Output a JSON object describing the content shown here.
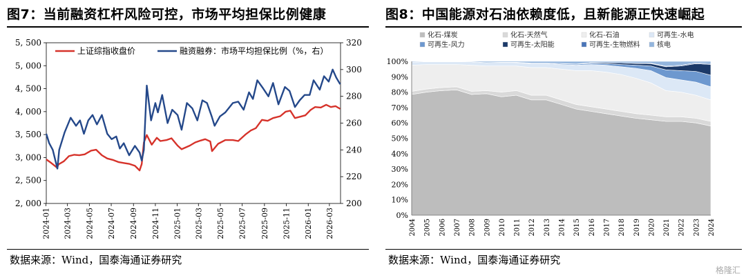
{
  "watermark": "格隆汇",
  "chart_data": [
    {
      "type": "line",
      "title": "图7：当前融资杠杆风险可控，市场平均担保比例健康",
      "source": "数据来源：Wind，国泰海通证券研究",
      "x_ticks": [
        "2024-01",
        "2024-03",
        "2024-05",
        "2024-07",
        "2024-09",
        "2024-11",
        "2025-01",
        "2025-03",
        "2025-05",
        "2025-07",
        "2025-09",
        "2025-11",
        "2026-01",
        "2026-03"
      ],
      "y_left": {
        "ticks": [
          "2, 000",
          "2, 500",
          "3, 000",
          "3, 500",
          "4, 000",
          "4, 500",
          "5, 000",
          "5, 500"
        ],
        "lim": [
          2000,
          5500
        ]
      },
      "y_right": {
        "ticks": [
          "200",
          "220",
          "240",
          "260",
          "280",
          "300",
          "320"
        ],
        "lim": [
          200,
          320
        ]
      },
      "series": [
        {
          "name": "上证综指收盘价",
          "axis": "left",
          "color": "#d6322a",
          "x": [
            "2024-01-02",
            "2024-01-16",
            "2024-02-01",
            "2024-02-05",
            "2024-02-20",
            "2024-03-05",
            "2024-03-20",
            "2024-04-03",
            "2024-04-18",
            "2024-05-06",
            "2024-05-20",
            "2024-06-05",
            "2024-06-20",
            "2024-07-05",
            "2024-07-22",
            "2024-08-06",
            "2024-08-21",
            "2024-09-05",
            "2024-09-18",
            "2024-09-24",
            "2024-09-30",
            "2024-10-08",
            "2024-10-22",
            "2024-11-05",
            "2024-11-15",
            "2024-12-02",
            "2024-12-16",
            "2025-01-02",
            "2025-01-13",
            "2025-02-05",
            "2025-02-20",
            "2025-03-07",
            "2025-03-20",
            "2025-04-03",
            "2025-04-08",
            "2025-04-25",
            "2025-05-15",
            "2025-06-05",
            "2025-06-20",
            "2025-07-10",
            "2025-07-25",
            "2025-08-08",
            "2025-08-25",
            "2025-09-10",
            "2025-09-25",
            "2025-10-15",
            "2025-10-30",
            "2025-11-12",
            "2025-11-25",
            "2025-12-10",
            "2025-12-24",
            "2026-01-08",
            "2026-01-20",
            "2026-02-05",
            "2026-02-20",
            "2026-03-05",
            "2026-03-18",
            "2026-03-31"
          ],
          "values": [
            2960,
            2880,
            2780,
            2850,
            2920,
            3030,
            3060,
            3050,
            3070,
            3150,
            3170,
            3050,
            2980,
            2950,
            2900,
            2880,
            2860,
            2820,
            2720,
            2860,
            3330,
            3490,
            3280,
            3430,
            3360,
            3380,
            3420,
            3260,
            3180,
            3260,
            3330,
            3370,
            3400,
            3350,
            3140,
            3300,
            3380,
            3380,
            3360,
            3500,
            3590,
            3640,
            3820,
            3800,
            3860,
            3900,
            4000,
            4020,
            3860,
            3890,
            3920,
            4040,
            4100,
            4090,
            4150,
            4100,
            4120,
            4060
          ]
        },
        {
          "name": "融资融券：市场平均担保比例（%，右）",
          "axis": "right",
          "color": "#24488a",
          "x": [
            "2024-01-02",
            "2024-01-10",
            "2024-01-20",
            "2024-02-02",
            "2024-02-07",
            "2024-02-22",
            "2024-03-10",
            "2024-03-25",
            "2024-04-05",
            "2024-04-16",
            "2024-04-28",
            "2024-05-10",
            "2024-05-22",
            "2024-06-05",
            "2024-06-20",
            "2024-07-02",
            "2024-07-15",
            "2024-07-25",
            "2024-08-05",
            "2024-08-20",
            "2024-09-05",
            "2024-09-18",
            "2024-09-24",
            "2024-09-30",
            "2024-10-08",
            "2024-10-20",
            "2024-11-01",
            "2024-11-08",
            "2024-11-20",
            "2024-12-05",
            "2024-12-18",
            "2025-01-02",
            "2025-01-13",
            "2025-01-28",
            "2025-02-12",
            "2025-02-26",
            "2025-03-12",
            "2025-03-25",
            "2025-04-07",
            "2025-04-15",
            "2025-04-30",
            "2025-05-15",
            "2025-06-05",
            "2025-06-20",
            "2025-07-05",
            "2025-07-20",
            "2025-07-31",
            "2025-08-12",
            "2025-08-28",
            "2025-09-12",
            "2025-09-25",
            "2025-10-10",
            "2025-10-28",
            "2025-11-10",
            "2025-11-25",
            "2025-12-08",
            "2025-12-22",
            "2026-01-05",
            "2026-01-16",
            "2026-02-02",
            "2026-02-14",
            "2026-02-27",
            "2026-03-10",
            "2026-03-20",
            "2026-03-31"
          ],
          "values": [
            252,
            245,
            240,
            226,
            240,
            253,
            264,
            258,
            262,
            252,
            262,
            266,
            259,
            266,
            252,
            248,
            250,
            241,
            245,
            236,
            243,
            238,
            232,
            240,
            288,
            262,
            275,
            268,
            281,
            260,
            270,
            266,
            255,
            275,
            271,
            262,
            277,
            275,
            265,
            258,
            265,
            268,
            275,
            276,
            270,
            283,
            278,
            292,
            286,
            280,
            290,
            274,
            287,
            284,
            272,
            277,
            281,
            281,
            292,
            285,
            295,
            291,
            300,
            294,
            289
          ]
        }
      ]
    },
    {
      "type": "area",
      "title": "图8：中国能源对石油依赖度低，且新能源正快速崛起",
      "source": "数据来源：Wind，国泰海通证券研究",
      "x": [
        "2004",
        "2005",
        "2006",
        "2007",
        "2008",
        "2009",
        "2010",
        "2011",
        "2012",
        "2013",
        "2014",
        "2015",
        "2016",
        "2017",
        "2018",
        "2019",
        "2020",
        "2021",
        "2022",
        "2023",
        "2024"
      ],
      "y_ticks": [
        "0%",
        "10%",
        "20%",
        "30%",
        "40%",
        "50%",
        "60%",
        "70%",
        "80%",
        "90%",
        "100%"
      ],
      "ylim": [
        0,
        100
      ],
      "stacked": true,
      "legend_position": "top",
      "series": [
        {
          "name": "化石-煤炭",
          "color": "#bdbdbd",
          "values": [
            78.5,
            80,
            81,
            81.5,
            78.5,
            79,
            77,
            78,
            75,
            75,
            72,
            69,
            67.5,
            66,
            64.5,
            63,
            62,
            61,
            61,
            60,
            58
          ]
        },
        {
          "name": "化石-天然气",
          "color": "#d9d9d9",
          "values": [
            2,
            2,
            2,
            2,
            2,
            2,
            3,
            3,
            3,
            3,
            3,
            3,
            3,
            3,
            3,
            3,
            3,
            3,
            3,
            3,
            3
          ]
        },
        {
          "name": "化石-石油",
          "color": "#eeeeee",
          "values": [
            17,
            16,
            15,
            14.5,
            17,
            16,
            17,
            16,
            18,
            18,
            20,
            22,
            23.5,
            24,
            24,
            23,
            21,
            17,
            16,
            15,
            14
          ]
        },
        {
          "name": "可再生-水电",
          "color": "#dce8f6",
          "values": [
            2,
            1.8,
            1.8,
            1.8,
            2.2,
            2.2,
            2.4,
            2.2,
            2.6,
            2.6,
            3,
            3.5,
            4,
            4.5,
            5,
            6.5,
            8,
            8.5,
            8,
            8.5,
            8.5
          ]
        },
        {
          "name": "可再生-风力",
          "color": "#6d98cf",
          "values": [
            0,
            0,
            0,
            0,
            0,
            0,
            0,
            0.2,
            0.3,
            0.3,
            0.5,
            0.6,
            0.8,
            1,
            1.5,
            2,
            3,
            5,
            6,
            7,
            7.5
          ]
        },
        {
          "name": "可再生-太阳能",
          "color": "#1c3a69",
          "values": [
            0,
            0,
            0,
            0,
            0,
            0,
            0,
            0,
            0,
            0,
            0.1,
            0.2,
            0.4,
            0.7,
            1,
            1.2,
            1.5,
            2,
            3,
            5,
            7
          ]
        },
        {
          "name": "可再生-生物燃料",
          "color": "#4a75b8",
          "values": [
            0,
            0,
            0,
            0,
            0,
            0,
            0,
            0,
            0,
            0,
            0,
            0,
            0,
            0,
            0.1,
            0.2,
            0.3,
            0.4,
            0.5,
            0.5,
            0.5
          ]
        },
        {
          "name": "核电",
          "color": "#93b5dd",
          "values": [
            0.5,
            0.2,
            0.2,
            0.2,
            0.3,
            0.8,
            0.6,
            0.6,
            1.1,
            1.1,
            1.4,
            1.7,
            0.8,
            0.8,
            0.9,
            1.1,
            1.2,
            3.1,
            2.5,
            1,
            1.5
          ]
        }
      ]
    }
  ]
}
